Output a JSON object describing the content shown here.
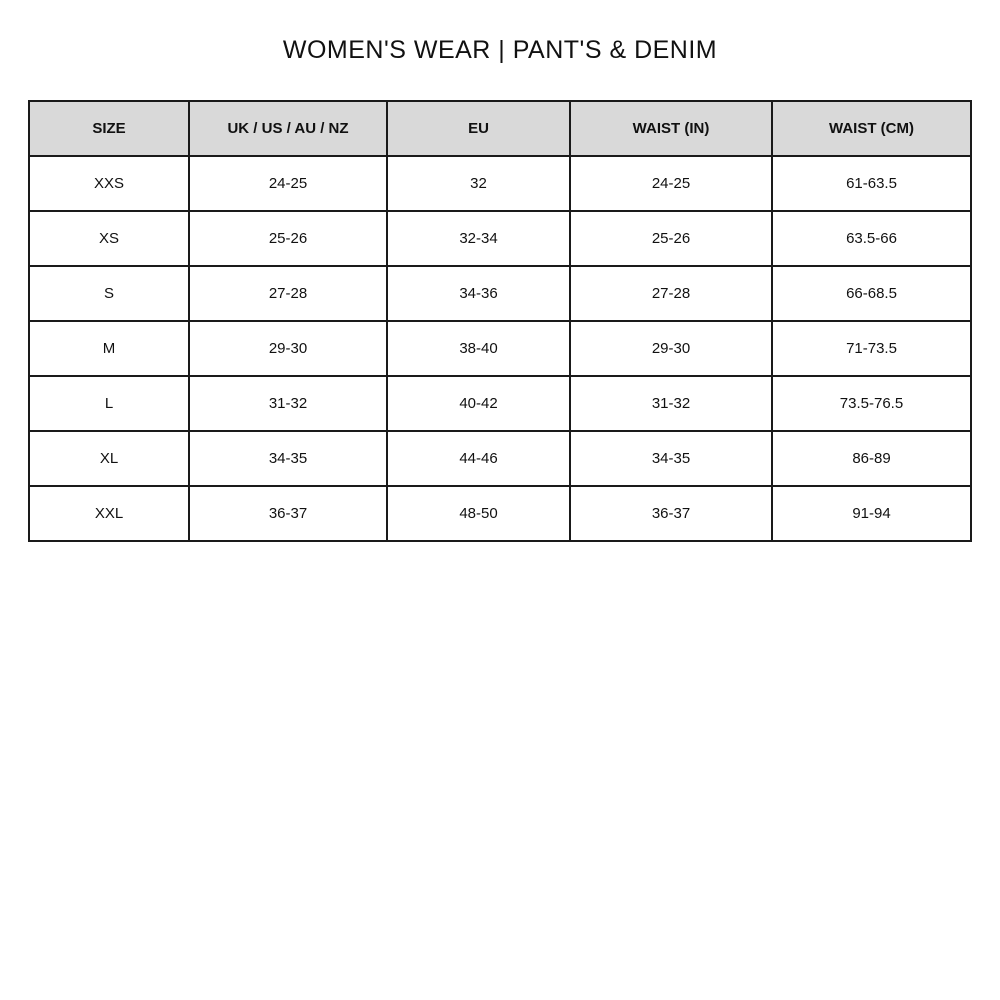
{
  "title": "WOMEN'S WEAR | PANT'S & DENIM",
  "table": {
    "headers": [
      "SIZE",
      "UK / US / AU / NZ",
      "EU",
      "WAIST (IN)",
      "WAIST (CM)"
    ],
    "rows": [
      [
        "XXS",
        "24-25",
        "32",
        "24-25",
        "61-63.5"
      ],
      [
        "XS",
        "25-26",
        "32-34",
        "25-26",
        "63.5-66"
      ],
      [
        "S",
        "27-28",
        "34-36",
        "27-28",
        "66-68.5"
      ],
      [
        "M",
        "29-30",
        "38-40",
        "29-30",
        "71-73.5"
      ],
      [
        "L",
        "31-32",
        "40-42",
        "31-32",
        "73.5-76.5"
      ],
      [
        "XL",
        "34-35",
        "44-46",
        "34-35",
        "86-89"
      ],
      [
        "XXL",
        "36-37",
        "48-50",
        "36-37",
        "91-94"
      ]
    ]
  }
}
